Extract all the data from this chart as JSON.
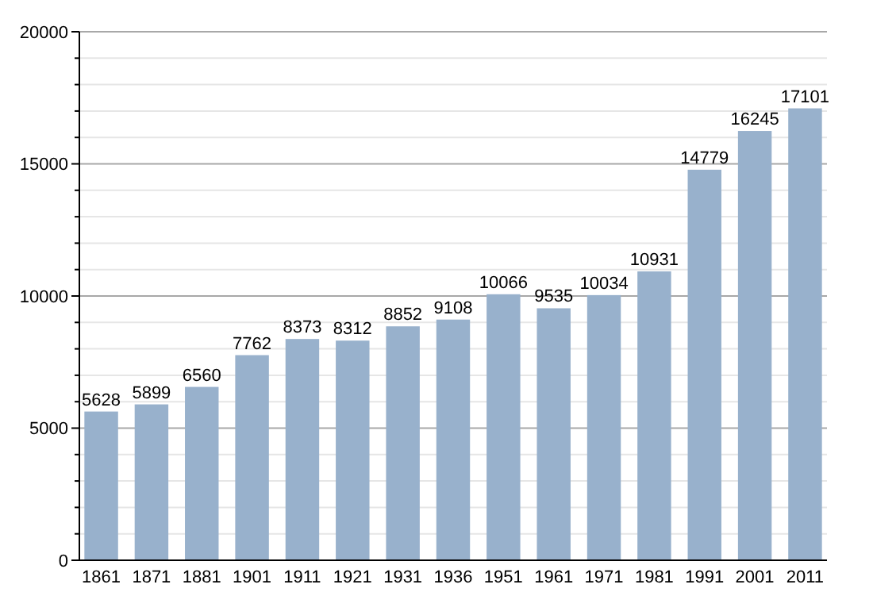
{
  "chart_data": {
    "type": "bar",
    "categories": [
      "1861",
      "1871",
      "1881",
      "1901",
      "1911",
      "1921",
      "1931",
      "1936",
      "1951",
      "1961",
      "1971",
      "1981",
      "1991",
      "2001",
      "2011"
    ],
    "values": [
      5628,
      5899,
      6560,
      7762,
      8373,
      8312,
      8852,
      9108,
      10066,
      9535,
      10034,
      10931,
      14779,
      16245,
      17101
    ],
    "color": "#98b1cc",
    "data_labels": true,
    "grid": "y",
    "ylim": [
      0,
      20000
    ],
    "yticks": [
      0,
      {
        "value": 1000,
        "label": null
      },
      {
        "value": 2000,
        "label": null
      },
      {
        "value": 3000,
        "label": null
      },
      {
        "value": 4000,
        "label": null
      },
      5000,
      {
        "value": 6000,
        "label": null
      },
      {
        "value": 7000,
        "label": null
      },
      {
        "value": 8000,
        "label": null
      },
      {
        "value": 9000,
        "label": null
      },
      10000,
      {
        "value": 11000,
        "label": null
      },
      {
        "value": 12000,
        "label": null
      },
      {
        "value": 13000,
        "label": null
      },
      {
        "value": 14000,
        "label": null
      },
      15000,
      {
        "value": 16000,
        "label": null
      },
      {
        "value": 17000,
        "label": null
      },
      {
        "value": 18000,
        "label": null
      },
      {
        "value": 19000,
        "label": null
      },
      20000
    ]
  }
}
